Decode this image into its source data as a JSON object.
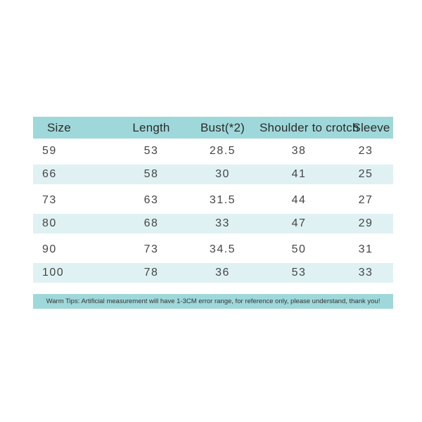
{
  "chart_data": {
    "type": "table",
    "columns": [
      "Size",
      "Length",
      "Bust(*2)",
      "Shoulder to crotch",
      "Sleeve"
    ],
    "rows": [
      [
        "59",
        "53",
        "28.5",
        "38",
        "23"
      ],
      [
        "66",
        "58",
        "30",
        "41",
        "25"
      ],
      [
        "73",
        "63",
        "31.5",
        "44",
        "27"
      ],
      [
        "80",
        "68",
        "33",
        "47",
        "29"
      ],
      [
        "90",
        "73",
        "34.5",
        "50",
        "31"
      ],
      [
        "100",
        "78",
        "36",
        "53",
        "33"
      ]
    ],
    "layout": {
      "striped_row_indices": [
        1,
        3,
        5
      ],
      "grid": "off",
      "header_position": "top"
    }
  },
  "footer": {
    "warm_tips": "Warm Tips: Artificial measurement will have 1-3CM error range, for reference only, please understand, thank you!"
  },
  "colors": {
    "header_bg": "#9fd8da",
    "stripe_bg": "#dff1f3",
    "tips_bg": "#9fd8da",
    "header_text": "#2b2b2b",
    "data_text": "#454545",
    "page_bg": "#ffffff"
  }
}
